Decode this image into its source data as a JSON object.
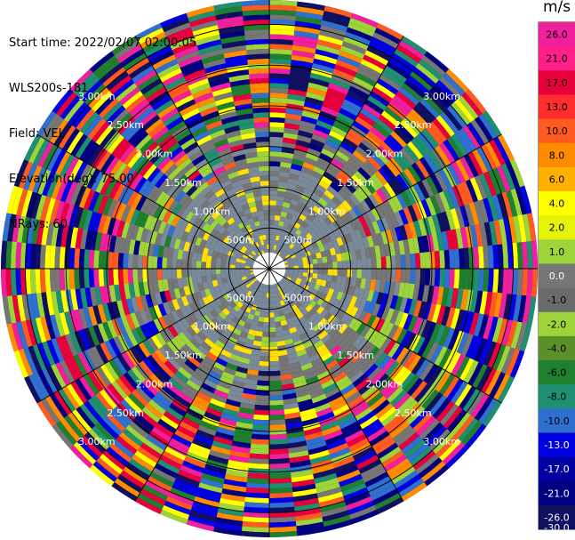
{
  "header": {
    "start_time": "Start time: 2022/02/07 02:00:05",
    "instrument": "WLS200s-181",
    "field": "Field: VEL",
    "elevation": "Elevation(deg): 75.00",
    "nrays": "NRays: 60"
  },
  "colorbar": {
    "unit": "m/s",
    "labels": [
      "26.0",
      "21.0",
      "17.0",
      "13.0",
      "10.0",
      "8.0",
      "6.0",
      "4.0",
      "2.0",
      "1.0",
      "0.0",
      "-1.0",
      "-2.0",
      "-4.0",
      "-6.0",
      "-8.0",
      "-10.0",
      "-13.0",
      "-17.0",
      "-21.0",
      "-26.0",
      "-30.0"
    ],
    "colors": [
      "#f01f9e",
      "#ff1f88",
      "#e8003c",
      "#ff2e2e",
      "#ff5a1f",
      "#ff8c00",
      "#ffb000",
      "#ffff00",
      "#e6f20a",
      "#9cd43a",
      "#767676",
      "#6a6a6a",
      "#9cd43a",
      "#5a8f2a",
      "#1e7f2e",
      "#1e8f70",
      "#2f6fd0",
      "#0000e0",
      "#0000a0",
      "#000080",
      "#101060",
      "#000040"
    ]
  },
  "chart_data": {
    "type": "polar-ppi",
    "field": "VEL",
    "units": "m/s",
    "nrays": 60,
    "range_rings_km": [
      0.5,
      1.0,
      1.5,
      2.0,
      2.5,
      3.0
    ],
    "ring_labels": [
      "500m",
      "1.00km",
      "1.50km",
      "2.00km",
      "2.50km",
      "3.00km"
    ],
    "color_scale_min": -30.0,
    "color_scale_max": 26.0,
    "inner_zone_fill": "#7a8a9a",
    "palette_outer": [
      "#f01f9e",
      "#e8003c",
      "#ff5a1f",
      "#ff8c00",
      "#ffff00",
      "#9cd43a",
      "#1e7f2e",
      "#1e8f70",
      "#2f6fd0",
      "#0000e0",
      "#000080",
      "#101060",
      "#767676"
    ]
  }
}
